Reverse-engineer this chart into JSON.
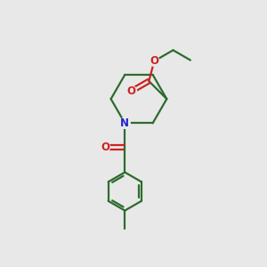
{
  "background_color": "#e8e8e8",
  "bond_color": "#2d6b2d",
  "n_color": "#2222cc",
  "o_color": "#cc2222",
  "line_width": 1.6,
  "figsize": [
    3.0,
    3.0
  ],
  "dpi": 100,
  "xlim": [
    0,
    10
  ],
  "ylim": [
    0,
    10
  ]
}
